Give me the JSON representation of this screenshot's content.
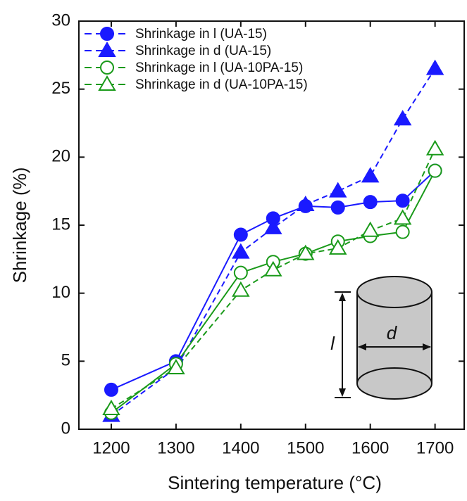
{
  "chart_data": {
    "type": "line",
    "x_label": "Sintering temperature (°C)",
    "y_label": "Shrinkage (%)",
    "x": [
      1200,
      1300,
      1400,
      1450,
      1500,
      1550,
      1600,
      1650,
      1700
    ],
    "xlim": [
      1150,
      1745
    ],
    "xticks": [
      1200,
      1300,
      1400,
      1500,
      1600,
      1700
    ],
    "ylim": [
      0,
      30
    ],
    "yticks": [
      0,
      5,
      10,
      15,
      20,
      25,
      30
    ],
    "legend": "upper left",
    "series": [
      {
        "name": "Shrinkage in l (UA-15)",
        "color": "#1a1aff",
        "marker": "circle",
        "filled": true,
        "linestyle": "solid",
        "values": [
          2.9,
          5.0,
          14.3,
          15.5,
          16.4,
          16.3,
          16.7,
          16.8,
          19.0
        ]
      },
      {
        "name": "Shrinkage in d (UA-15)",
        "color": "#1a1aff",
        "marker": "triangle",
        "filled": true,
        "linestyle": "dashed",
        "values": [
          1.0,
          4.5,
          13.0,
          14.8,
          16.5,
          17.5,
          18.6,
          22.8,
          26.5
        ]
      },
      {
        "name": "Shrinkage in l (UA-10PA-15)",
        "color": "#1a9a1a",
        "marker": "circle",
        "filled": false,
        "linestyle": "solid",
        "values": [
          1.2,
          4.8,
          11.5,
          12.3,
          12.9,
          13.8,
          14.2,
          14.5,
          19.0
        ]
      },
      {
        "name": "Shrinkage in d (UA-10PA-15)",
        "color": "#1a9a1a",
        "marker": "triangle",
        "filled": false,
        "linestyle": "dashed",
        "values": [
          1.5,
          4.5,
          10.2,
          11.7,
          12.9,
          13.3,
          14.6,
          15.5,
          20.6
        ]
      }
    ],
    "annotations": [
      "l",
      "d"
    ]
  }
}
